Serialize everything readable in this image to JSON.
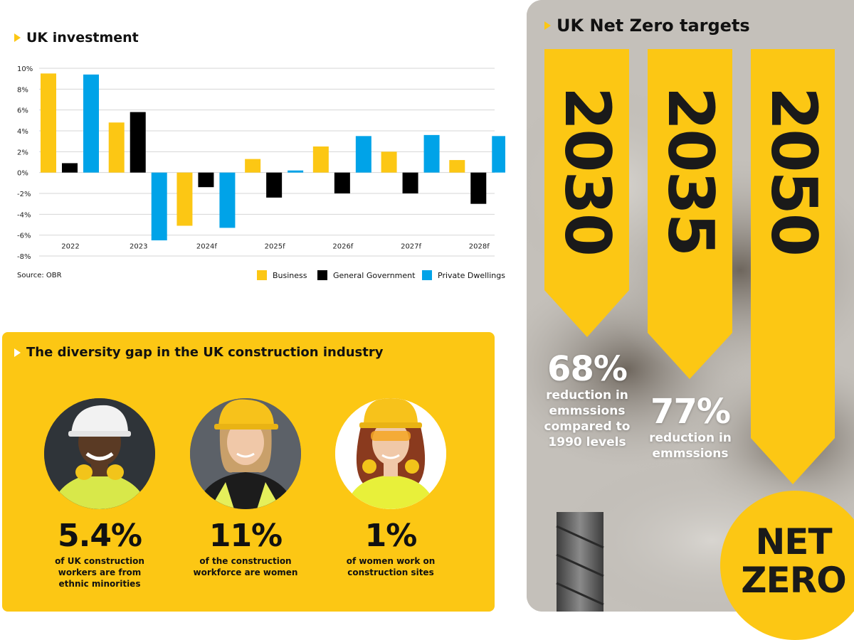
{
  "investment": {
    "title": "UK investment",
    "source": "Source: OBR",
    "legend": [
      "Business",
      "General Government",
      "Private Dwellings"
    ]
  },
  "chart_data": {
    "type": "bar",
    "title": "UK investment",
    "categories": [
      "2022",
      "2023",
      "2024f",
      "2025f",
      "2026f",
      "2027f",
      "2028f"
    ],
    "series": [
      {
        "name": "Business",
        "color": "#FCC714",
        "values": [
          9.5,
          4.8,
          -5.1,
          1.3,
          2.5,
          2.0,
          1.2
        ]
      },
      {
        "name": "General Government",
        "color": "#000000",
        "values": [
          0.9,
          5.8,
          -1.4,
          -2.4,
          -2.0,
          -2.0,
          -3.0
        ]
      },
      {
        "name": "Private Dwellings",
        "color": "#00A3E8",
        "values": [
          9.4,
          -6.5,
          -5.3,
          0.2,
          3.5,
          3.6,
          3.5
        ]
      }
    ],
    "ylim": [
      -8,
      10
    ],
    "yticks": [
      "10%",
      "8%",
      "6%",
      "4%",
      "2%",
      "0%",
      "-2%",
      "-4%",
      "-6%",
      "-8%"
    ],
    "grid": true,
    "legend_position": "bottom-right"
  },
  "diversity": {
    "title": "The diversity gap in the UK construction industry",
    "stats": [
      {
        "value": "5.4%",
        "caption_lines": [
          "of UK construction",
          "workers are from",
          "ethnic minorities"
        ]
      },
      {
        "value": "11%",
        "caption_lines": [
          "of the construction",
          "workforce are women"
        ]
      },
      {
        "value": "1%",
        "caption_lines": [
          "of women work on",
          "construction sites"
        ]
      }
    ]
  },
  "netzero": {
    "title": "UK Net Zero targets",
    "years": [
      "2030",
      "2035",
      "2050"
    ],
    "stat_2030": {
      "value": "68%",
      "lines": [
        "reduction in",
        "emmssions",
        "compared to",
        "1990 levels"
      ]
    },
    "stat_2035": {
      "value": "77%",
      "lines": [
        "reduction in",
        "emmssions"
      ]
    },
    "badge_lines": [
      "NET",
      "ZERO"
    ]
  },
  "colors": {
    "accent": "#FCC714",
    "blue": "#00A3E8",
    "black": "#000000"
  }
}
